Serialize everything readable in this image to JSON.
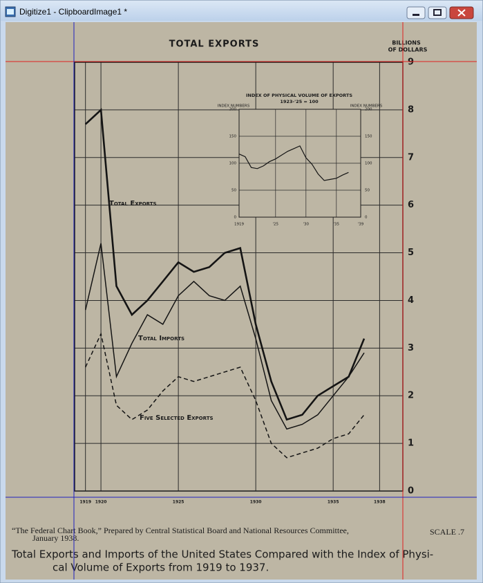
{
  "window": {
    "title": "Digitize1 - ClipboardImage1 *"
  },
  "chart_data": [
    {
      "type": "line",
      "title": "TOTAL EXPORTS",
      "y_label": [
        "BILLIONS",
        "OF DOLLARS"
      ],
      "x": [
        1919,
        1920,
        1921,
        1922,
        1923,
        1924,
        1925,
        1926,
        1927,
        1928,
        1929,
        1930,
        1931,
        1932,
        1933,
        1934,
        1935,
        1936,
        1937
      ],
      "series": [
        {
          "name": "Total Exports",
          "color": "#141414",
          "line_style": "solid",
          "values": [
            7.7,
            8.0,
            4.3,
            3.7,
            4.0,
            4.4,
            4.8,
            4.6,
            4.7,
            5.0,
            5.1,
            3.5,
            2.3,
            1.5,
            1.6,
            2.0,
            2.2,
            2.4,
            3.2
          ]
        },
        {
          "name": "Total Imports",
          "color": "#141414",
          "line_style": "solid",
          "values": [
            3.8,
            5.2,
            2.4,
            3.1,
            3.7,
            3.5,
            4.1,
            4.4,
            4.1,
            4.0,
            4.3,
            3.2,
            1.9,
            1.3,
            1.4,
            1.6,
            2.0,
            2.4,
            2.9
          ]
        },
        {
          "name": "Five Selected Exports",
          "color": "#141414",
          "line_style": "dashed",
          "values": [
            2.6,
            3.3,
            1.8,
            1.5,
            1.7,
            2.1,
            2.4,
            2.3,
            2.4,
            2.5,
            2.6,
            1.9,
            1.0,
            0.7,
            0.8,
            0.9,
            1.1,
            1.2,
            1.6
          ]
        }
      ],
      "xlim": [
        1918.3,
        1939.5
      ],
      "xticks": [
        1919,
        1920,
        1925,
        1930,
        1935,
        1938
      ],
      "ylim": [
        0,
        9
      ],
      "yticks": [
        0,
        1,
        2,
        3,
        4,
        5,
        6,
        7,
        8,
        9
      ],
      "grid": true
    },
    {
      "type": "line",
      "title": "INDEX OF PHYSICAL VOLUME OF EXPORTS",
      "subtitle": "1923-'25 = 100",
      "y_label": "INDEX NUMBERS",
      "y2_label": "INDEX NUMBERS",
      "x": [
        1919,
        1920,
        1921,
        1922,
        1923,
        1924,
        1925,
        1926,
        1927,
        1928,
        1929,
        1930,
        1931,
        1932,
        1933,
        1934,
        1935,
        1936,
        1937
      ],
      "series": [
        {
          "name": "Index",
          "color": "#141414",
          "values": [
            117,
            112,
            92,
            90,
            95,
            103,
            108,
            115,
            122,
            127,
            132,
            110,
            98,
            80,
            68,
            70,
            72,
            78,
            83
          ]
        }
      ],
      "xlim": [
        1919,
        1939
      ],
      "xticks": [
        1919,
        {
          "value": 1925,
          "label": "'25"
        },
        {
          "value": 1930,
          "label": "'30"
        },
        {
          "value": 1935,
          "label": "'35"
        },
        {
          "value": 1939,
          "label": "'39"
        }
      ],
      "ylim": [
        0,
        200
      ],
      "yticks": [
        0,
        50,
        100,
        150,
        200
      ],
      "grid": true
    }
  ],
  "caption": {
    "source": [
      "“The Federal Chart Book,” Prepared by Central Statistical Board and National Resources Committee,",
      "January 1938."
    ],
    "scale": "SCALE .7",
    "title": [
      "Total Exports and Imports of the United States Compared with the Index of Physi-",
      "cal Volume of Exports from 1919 to 1937."
    ]
  }
}
